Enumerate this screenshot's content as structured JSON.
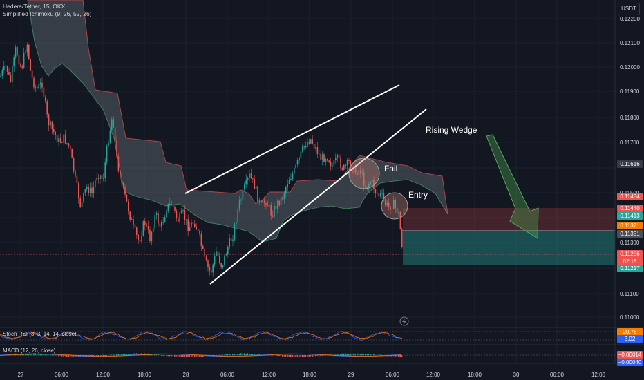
{
  "header": {
    "symbol_line": "Hedera/Tether, 15, OKX",
    "indicator_line": "Simplified Ichimoku (9, 26, 52, 26)"
  },
  "currency_button": "USDT",
  "y_axis": {
    "ticks": [
      "0.12200",
      "0.12100",
      "0.12000",
      "0.11900",
      "0.11800",
      "0.11700",
      "0.11500",
      "0.11300",
      "0.11100",
      "0.11000"
    ],
    "tags": {
      "cloud_a": "0.11616",
      "stop": "0.11484",
      "entry_hi": "0.11440",
      "entry_lo": "0.11413",
      "orange": "0.11371",
      "grey": "0.11351",
      "last_price": "0.11256",
      "countdown": "02:15",
      "target": "0.11217"
    }
  },
  "x_axis": {
    "ticks": [
      "27",
      "06:00",
      "12:00",
      "18:00",
      "28",
      "06:00",
      "12:00",
      "18:00",
      "29",
      "06:00",
      "12:00",
      "18:00",
      "30",
      "06:00",
      "12:00"
    ]
  },
  "annotations": {
    "rising_wedge": "Rising Wedge",
    "fail": "Fail",
    "entry": "Entry"
  },
  "stoch_rsi": {
    "label": "Stoch RSI (3, 3, 14, 14, close)",
    "k_value": "20.76",
    "d_value": "3.02"
  },
  "macd": {
    "label": "MACD (12, 26, close)",
    "macd_value": "−0.00014",
    "signal_value": "−0.00040"
  },
  "colors": {
    "background": "#131722",
    "up": "#26a69a",
    "down": "#ef5350",
    "loss_zone": "#ef5350",
    "profit_zone": "#26a69a",
    "arrow": "#4caf50",
    "orange": "#f57c00"
  },
  "icons": {
    "alert": "lightning-icon"
  }
}
